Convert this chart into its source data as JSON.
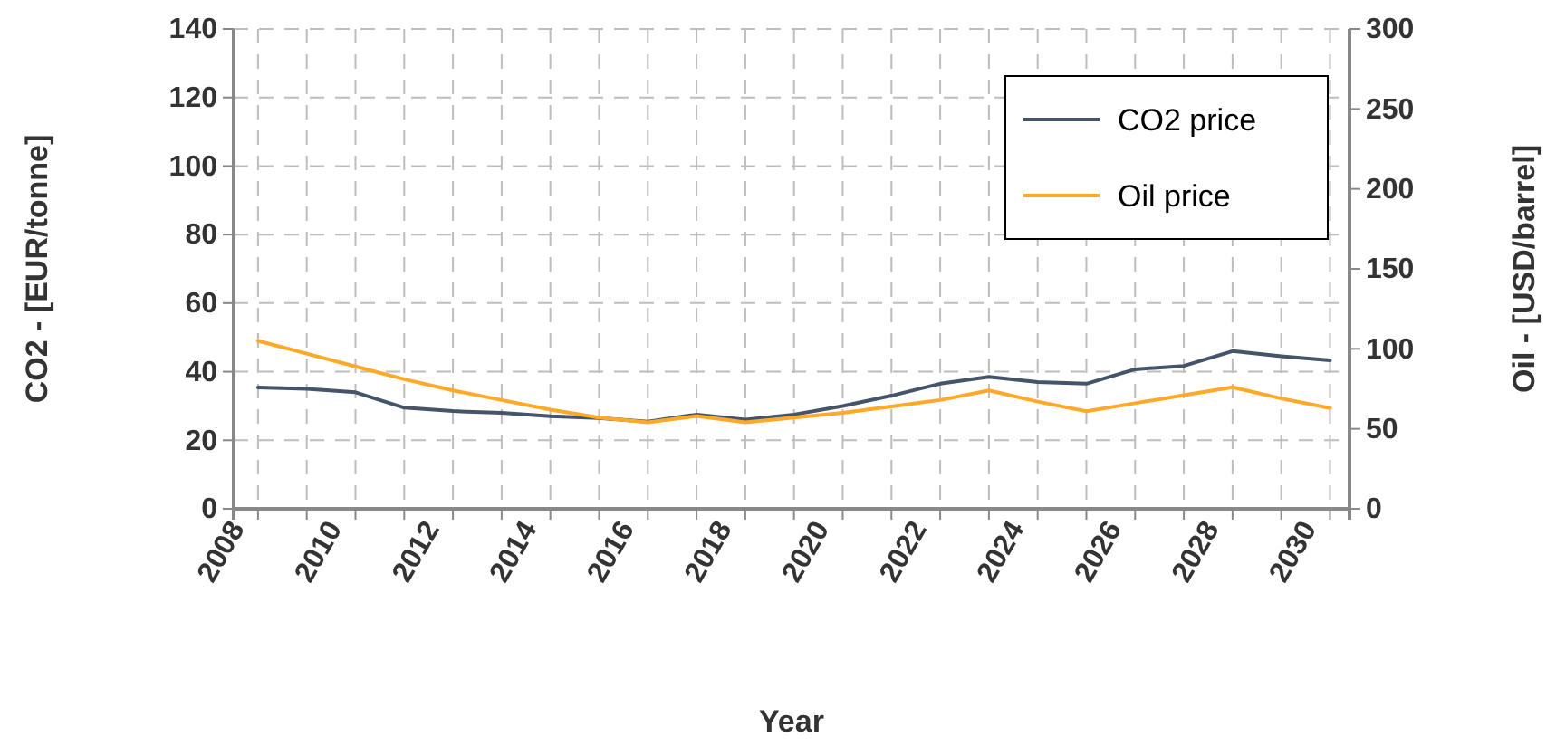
{
  "chart_data": {
    "type": "line",
    "xlabel": "Year",
    "ylabel": "CO2 -  [EUR/tonne]",
    "y2label": "Oil -  [USD/barrel]",
    "x": [
      2008,
      2009,
      2010,
      2011,
      2012,
      2013,
      2014,
      2015,
      2016,
      2017,
      2018,
      2019,
      2020,
      2021,
      2022,
      2023,
      2024,
      2025,
      2026,
      2027,
      2028,
      2029,
      2030
    ],
    "series": [
      {
        "name": "CO2 price",
        "color": "#44546a",
        "values": [
          35.4,
          35,
          34,
          29.5,
          28.5,
          28,
          27,
          26.5,
          25.4,
          27.5,
          26,
          27.5,
          30,
          33,
          36.5,
          38.5,
          37,
          36.5,
          40.7,
          41.7,
          46,
          44.5,
          43.3
        ]
      },
      {
        "name": "Oil price",
        "color": "#ffa929",
        "axis": "y2",
        "values": [
          105,
          97,
          89,
          81,
          74,
          68,
          62,
          57,
          54,
          58,
          54,
          57,
          60,
          64,
          68,
          74,
          67,
          61,
          66,
          71,
          76,
          69,
          63
        ]
      }
    ],
    "xlim": [
      2007.5,
      2030.4
    ],
    "xticks": [
      2008,
      {
        "value": 2009,
        "label": null
      },
      2010,
      {
        "value": 2011,
        "label": null
      },
      2012,
      {
        "value": 2013,
        "label": null
      },
      2014,
      {
        "value": 2015,
        "label": null
      },
      2016,
      {
        "value": 2017,
        "label": null
      },
      2018,
      {
        "value": 2019,
        "label": null
      },
      2020,
      {
        "value": 2021,
        "label": null
      },
      2022,
      {
        "value": 2023,
        "label": null
      },
      2024,
      {
        "value": 2025,
        "label": null
      },
      2026,
      {
        "value": 2027,
        "label": null
      },
      2028,
      {
        "value": 2029,
        "label": null
      },
      2030
    ],
    "ylim": [
      0,
      140
    ],
    "yticks": [
      0,
      20,
      40,
      60,
      80,
      100,
      120,
      140
    ],
    "y2lim": [
      0,
      300
    ],
    "y2ticks": [
      0,
      50,
      100,
      150,
      200,
      250,
      300
    ],
    "grid": true,
    "legend": "top right",
    "marker": "none",
    "line_style": "solid"
  }
}
